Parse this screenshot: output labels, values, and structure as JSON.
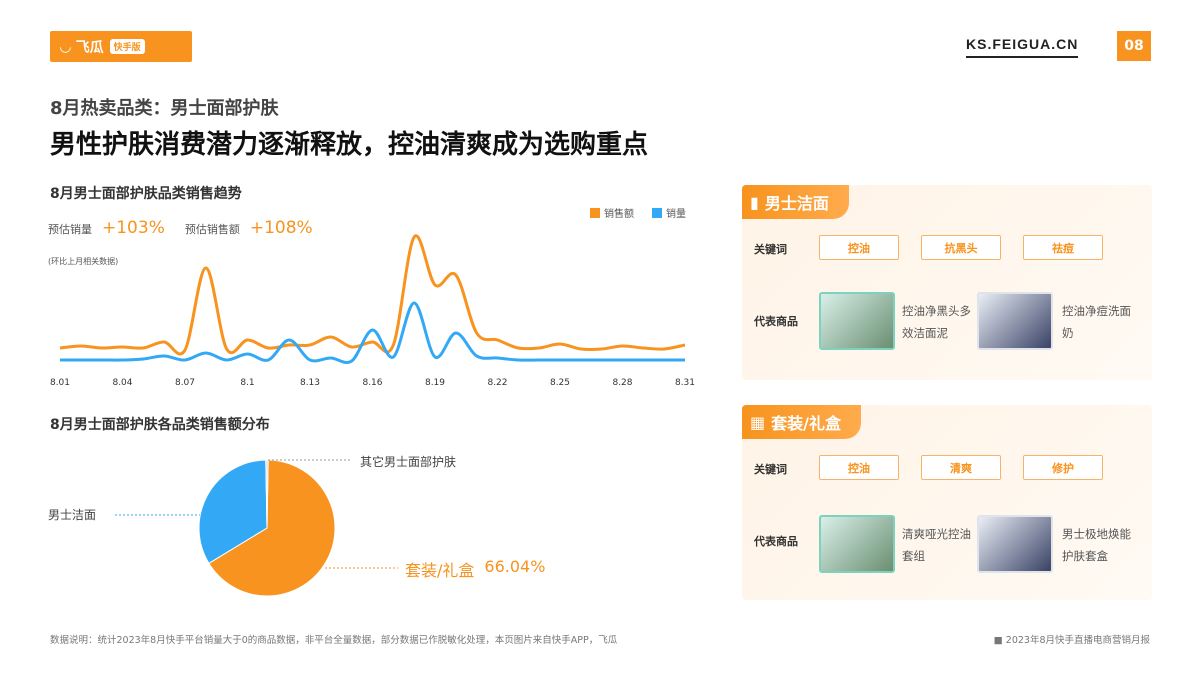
{
  "header": {
    "logo_text": "飞瓜",
    "logo_badge": "快手版",
    "site": "KS.FEIGUA.CN",
    "page_number": "08"
  },
  "subtitle": "8月热卖品类：男士面部护肤",
  "title": "男性护肤消费潜力逐渐释放，控油清爽成为选购重点",
  "trend": {
    "heading": "8月男士面部护肤品类销售趋势",
    "metric1_label": "预估销量",
    "metric1_value": "+103%",
    "metric2_label": "预估销售额",
    "metric2_value": "+108%",
    "note": "(环比上月相关数据)"
  },
  "pie_section": {
    "heading": "8月男士面部护肤各品类销售额分布"
  },
  "chart_data": [
    {
      "type": "line",
      "title": "8月男士面部护肤品类销售趋势",
      "legend_position": "top-right",
      "grid": false,
      "x": [
        "8.01",
        "8.02",
        "8.03",
        "8.04",
        "8.05",
        "8.06",
        "8.07",
        "8.08",
        "8.09",
        "8.10",
        "8.11",
        "8.12",
        "8.13",
        "8.14",
        "8.15",
        "8.16",
        "8.17",
        "8.18",
        "8.19",
        "8.20",
        "8.21",
        "8.22",
        "8.23",
        "8.24",
        "8.25",
        "8.26",
        "8.27",
        "8.28",
        "8.29",
        "8.30",
        "8.31"
      ],
      "tick_labels": [
        "8.01",
        "8.04",
        "8.07",
        "8.1",
        "8.13",
        "8.16",
        "8.19",
        "8.22",
        "8.25",
        "8.28",
        "8.31"
      ],
      "series": [
        {
          "name": "销售额",
          "color": "#f7931e",
          "values": [
            17,
            19,
            17,
            18,
            17,
            23,
            15,
            97,
            16,
            25,
            17,
            20,
            20,
            28,
            18,
            23,
            20,
            128,
            80,
            90,
            32,
            25,
            17,
            17,
            21,
            16,
            16,
            19,
            17,
            16,
            20
          ]
        },
        {
          "name": "销量",
          "color": "#33a9f5",
          "values": [
            5,
            5,
            5,
            5,
            6,
            9,
            5,
            12,
            5,
            11,
            5,
            25,
            5,
            7,
            4,
            35,
            8,
            62,
            8,
            32,
            9,
            7,
            5,
            5,
            5,
            5,
            5,
            5,
            5,
            5,
            5
          ]
        }
      ]
    },
    {
      "type": "pie",
      "slices": [
        {
          "label": "套装/礼盒",
          "value": 66.04,
          "display": "66.04%",
          "color": "#f7931e"
        },
        {
          "label": "男士洁面",
          "value": 33.4,
          "color": "#33a9f5"
        },
        {
          "label": "其它男士面部护肤",
          "value": 0.56,
          "color": "#dddddd"
        }
      ]
    }
  ],
  "cards": [
    {
      "tag": "男士洁面",
      "icon": "tube-icon",
      "kw_label": "关键词",
      "keywords": [
        "控油",
        "抗黑头",
        "祛痘"
      ],
      "prod_label": "代表商品",
      "products": [
        "控油净黑头多效洁面泥",
        "控油净痘洗面奶"
      ]
    },
    {
      "tag": "套装/礼盒",
      "icon": "gift-icon",
      "kw_label": "关键词",
      "keywords": [
        "控油",
        "清爽",
        "修护"
      ],
      "prod_label": "代表商品",
      "products": [
        "清爽哑光控油套组",
        "男士极地焕能护肤套盒"
      ]
    }
  ],
  "footer": {
    "note": "数据说明：统计2023年8月快手平台销量大于0的商品数据，非平台全量数据，部分数据已作脱敏化处理，本页图片来自快手APP，飞瓜",
    "report": "■ 2023年8月快手直播电商营销月报"
  }
}
